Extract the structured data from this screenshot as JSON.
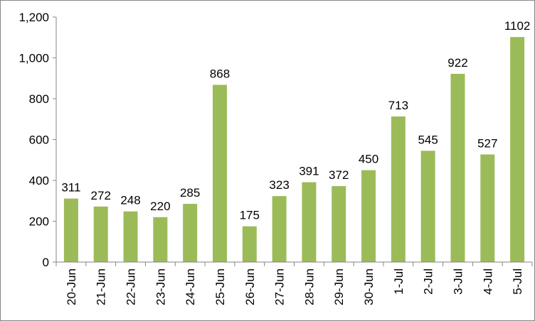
{
  "chart_data": {
    "type": "bar",
    "categories": [
      "20-Jun",
      "21-Jun",
      "22-Jun",
      "23-Jun",
      "24-Jun",
      "25-Jun",
      "26-Jun",
      "27-Jun",
      "28-Jun",
      "29-Jun",
      "30-Jun",
      "1-Jul",
      "2-Jul",
      "3-Jul",
      "4-Jul",
      "5-Jul"
    ],
    "values": [
      311,
      272,
      248,
      220,
      285,
      868,
      175,
      323,
      391,
      372,
      450,
      713,
      545,
      922,
      527,
      1102
    ],
    "data_labels": [
      "311",
      "272",
      "248",
      "220",
      "285",
      "868",
      "175",
      "323",
      "391",
      "372",
      "450",
      "713",
      "545",
      "922",
      "527",
      "1102"
    ],
    "y_ticks": [
      0,
      200,
      400,
      600,
      800,
      1000,
      1200
    ],
    "y_tick_labels": [
      "0",
      "200",
      "400",
      "600",
      "800",
      "1,000",
      "1,200"
    ],
    "ylim": [
      0,
      1200
    ],
    "title": "",
    "xlabel": "",
    "ylabel": "",
    "grid": false,
    "legend": "none",
    "x_tick_rotation": "vertical",
    "colors": {
      "bar": "#9BBB59",
      "axis": "#868686",
      "text": "#000000",
      "border": "#868686"
    }
  }
}
